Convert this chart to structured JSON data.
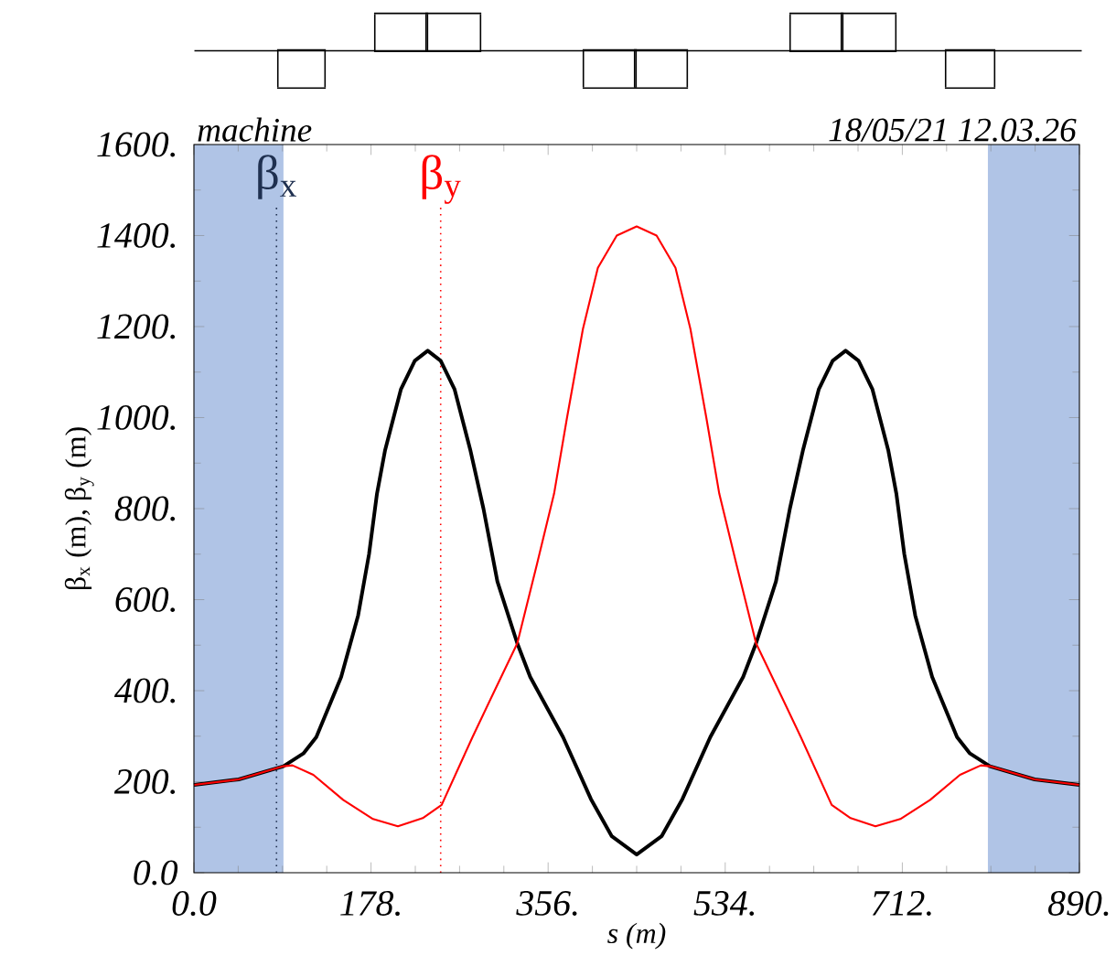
{
  "chart_data": {
    "type": "line",
    "xlabel": "s (m)",
    "ylabel": "β$_{x}$ (m), β$_{y}$ (m)",
    "annotations": [
      "machine",
      "18/05/21 12.03.26"
    ],
    "xlim": [
      0,
      890
    ],
    "ylim": [
      0,
      1600
    ],
    "xticks": [
      {
        "value": 0,
        "label": "0.0"
      },
      {
        "value": 178,
        "label": "178."
      },
      {
        "value": 356,
        "label": "356."
      },
      {
        "value": 534,
        "label": "534."
      },
      {
        "value": 712,
        "label": "712."
      },
      {
        "value": 890,
        "label": "890."
      }
    ],
    "yticks": [
      {
        "value": 0,
        "label": "0.0"
      },
      {
        "value": 200,
        "label": "200."
      },
      {
        "value": 400,
        "label": "400."
      },
      {
        "value": 600,
        "label": "600."
      },
      {
        "value": 800,
        "label": "800."
      },
      {
        "value": 1000,
        "label": "1000."
      },
      {
        "value": 1200,
        "label": "1200."
      },
      {
        "value": 1400,
        "label": "1400."
      },
      {
        "value": 1600,
        "label": "1600."
      }
    ],
    "grid": false,
    "marker": "none",
    "line_style": "solid",
    "series": [
      {
        "color": "#000000",
        "x": [
          0,
          45,
          90,
          110,
          123,
          148,
          165,
          176,
          184,
          192,
          208,
          222,
          235,
          248,
          262,
          278,
          291,
          305,
          325,
          338,
          371,
          399,
          420,
          445,
          470,
          491,
          519,
          552,
          565,
          585,
          599,
          612,
          628,
          642,
          655,
          668,
          682,
          698,
          706,
          714,
          725,
          742,
          767,
          780,
          800,
          845,
          890
        ],
        "values": [
          193,
          205,
          234,
          262,
          298,
          430,
          565,
          700,
          833,
          927,
          1062,
          1125,
          1147,
          1125,
          1062,
          927,
          800,
          640,
          504,
          430,
          298,
          162,
          80,
          40,
          80,
          162,
          298,
          430,
          504,
          640,
          800,
          927,
          1062,
          1125,
          1147,
          1125,
          1062,
          927,
          833,
          700,
          565,
          430,
          298,
          262,
          234,
          205,
          193
        ]
      },
      {
        "color": "#ff0000",
        "x": [
          0,
          45,
          90,
          99,
          120,
          150,
          180,
          205,
          230,
          249,
          280,
          300,
          325,
          345,
          362,
          375,
          391,
          406,
          425,
          445,
          465,
          484,
          499,
          515,
          528,
          545,
          565,
          590,
          610,
          641,
          660,
          685,
          710,
          740,
          770,
          791,
          800,
          845,
          890
        ],
        "values": [
          193,
          205,
          234,
          236,
          215,
          160,
          118,
          102,
          120,
          149,
          298,
          390,
          504,
          680,
          833,
          1000,
          1195,
          1329,
          1400,
          1420,
          1400,
          1329,
          1195,
          1000,
          833,
          680,
          504,
          390,
          298,
          149,
          120,
          102,
          118,
          160,
          215,
          236,
          234,
          205,
          193
        ]
      }
    ],
    "ref_lines": [
      {
        "axis": "x",
        "value": 83,
        "label": "β$_{x}$",
        "color": "#1f3050",
        "line_style": "dotted"
      },
      {
        "axis": "x",
        "value": 248,
        "label": "β$_{y}$",
        "color": "#ff0000",
        "line_style": "dotted"
      }
    ],
    "bands": [
      {
        "axis": "x",
        "from": 0,
        "to": 90,
        "color": "#b0c4e6"
      },
      {
        "axis": "x",
        "from": 798,
        "to": 890,
        "color": "#b0c4e6"
      }
    ]
  }
}
